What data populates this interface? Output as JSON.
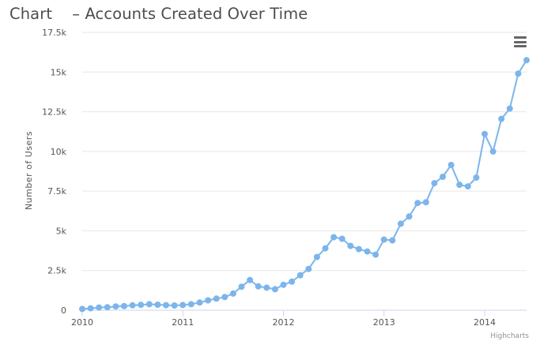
{
  "page": {
    "title_prefix": "Chart",
    "title_main": "– Accounts Created Over Time"
  },
  "menu": {
    "icon": "hamburger-menu-icon"
  },
  "credits": "Highcharts",
  "colors": {
    "series": "#7cb5ec",
    "grid": "#e6e6e6",
    "axis": "#ccd6eb",
    "text": "#555555"
  },
  "chart_data": {
    "type": "line",
    "title": "Chart – Accounts Created Over Time",
    "xlabel": "",
    "ylabel": "Number of Users",
    "xlim": [
      "2010-01",
      "2014-06"
    ],
    "ylim": [
      0,
      17500
    ],
    "x_ticks": [
      "2010",
      "2011",
      "2012",
      "2013",
      "2014"
    ],
    "y_ticks": [
      "0",
      "2.5k",
      "5k",
      "7.5k",
      "10k",
      "12.5k",
      "15k",
      "17.5k"
    ],
    "y_tick_values": [
      0,
      2500,
      5000,
      7500,
      10000,
      12500,
      15000,
      17500
    ],
    "grid": true,
    "legend": "none",
    "series": [
      {
        "x": [
          "2010-01",
          "2010-02",
          "2010-03",
          "2010-04",
          "2010-05",
          "2010-06",
          "2010-07",
          "2010-08",
          "2010-09",
          "2010-10",
          "2010-11",
          "2010-12",
          "2011-01",
          "2011-02",
          "2011-03",
          "2011-04",
          "2011-05",
          "2011-06",
          "2011-07",
          "2011-08",
          "2011-09",
          "2011-10",
          "2011-11",
          "2011-12",
          "2012-01",
          "2012-02",
          "2012-03",
          "2012-04",
          "2012-05",
          "2012-06",
          "2012-07",
          "2012-08",
          "2012-09",
          "2012-10",
          "2012-11",
          "2012-12",
          "2013-01",
          "2013-02",
          "2013-03",
          "2013-04",
          "2013-05",
          "2013-06",
          "2013-07",
          "2013-08",
          "2013-09",
          "2013-10",
          "2013-11",
          "2013-12",
          "2014-01",
          "2014-02",
          "2014-03",
          "2014-04",
          "2014-05",
          "2014-06"
        ],
        "values": [
          80,
          120,
          170,
          190,
          240,
          260,
          310,
          340,
          380,
          350,
          320,
          300,
          330,
          380,
          480,
          620,
          730,
          830,
          1050,
          1480,
          1900,
          1500,
          1420,
          1320,
          1600,
          1800,
          2200,
          2600,
          3350,
          3900,
          4600,
          4500,
          4050,
          3850,
          3700,
          3500,
          4450,
          4400,
          5450,
          5900,
          6750,
          6800,
          8000,
          8400,
          9150,
          7900,
          7800,
          8350,
          11100,
          10000,
          12050,
          12700,
          14900,
          15750
        ]
      }
    ]
  }
}
